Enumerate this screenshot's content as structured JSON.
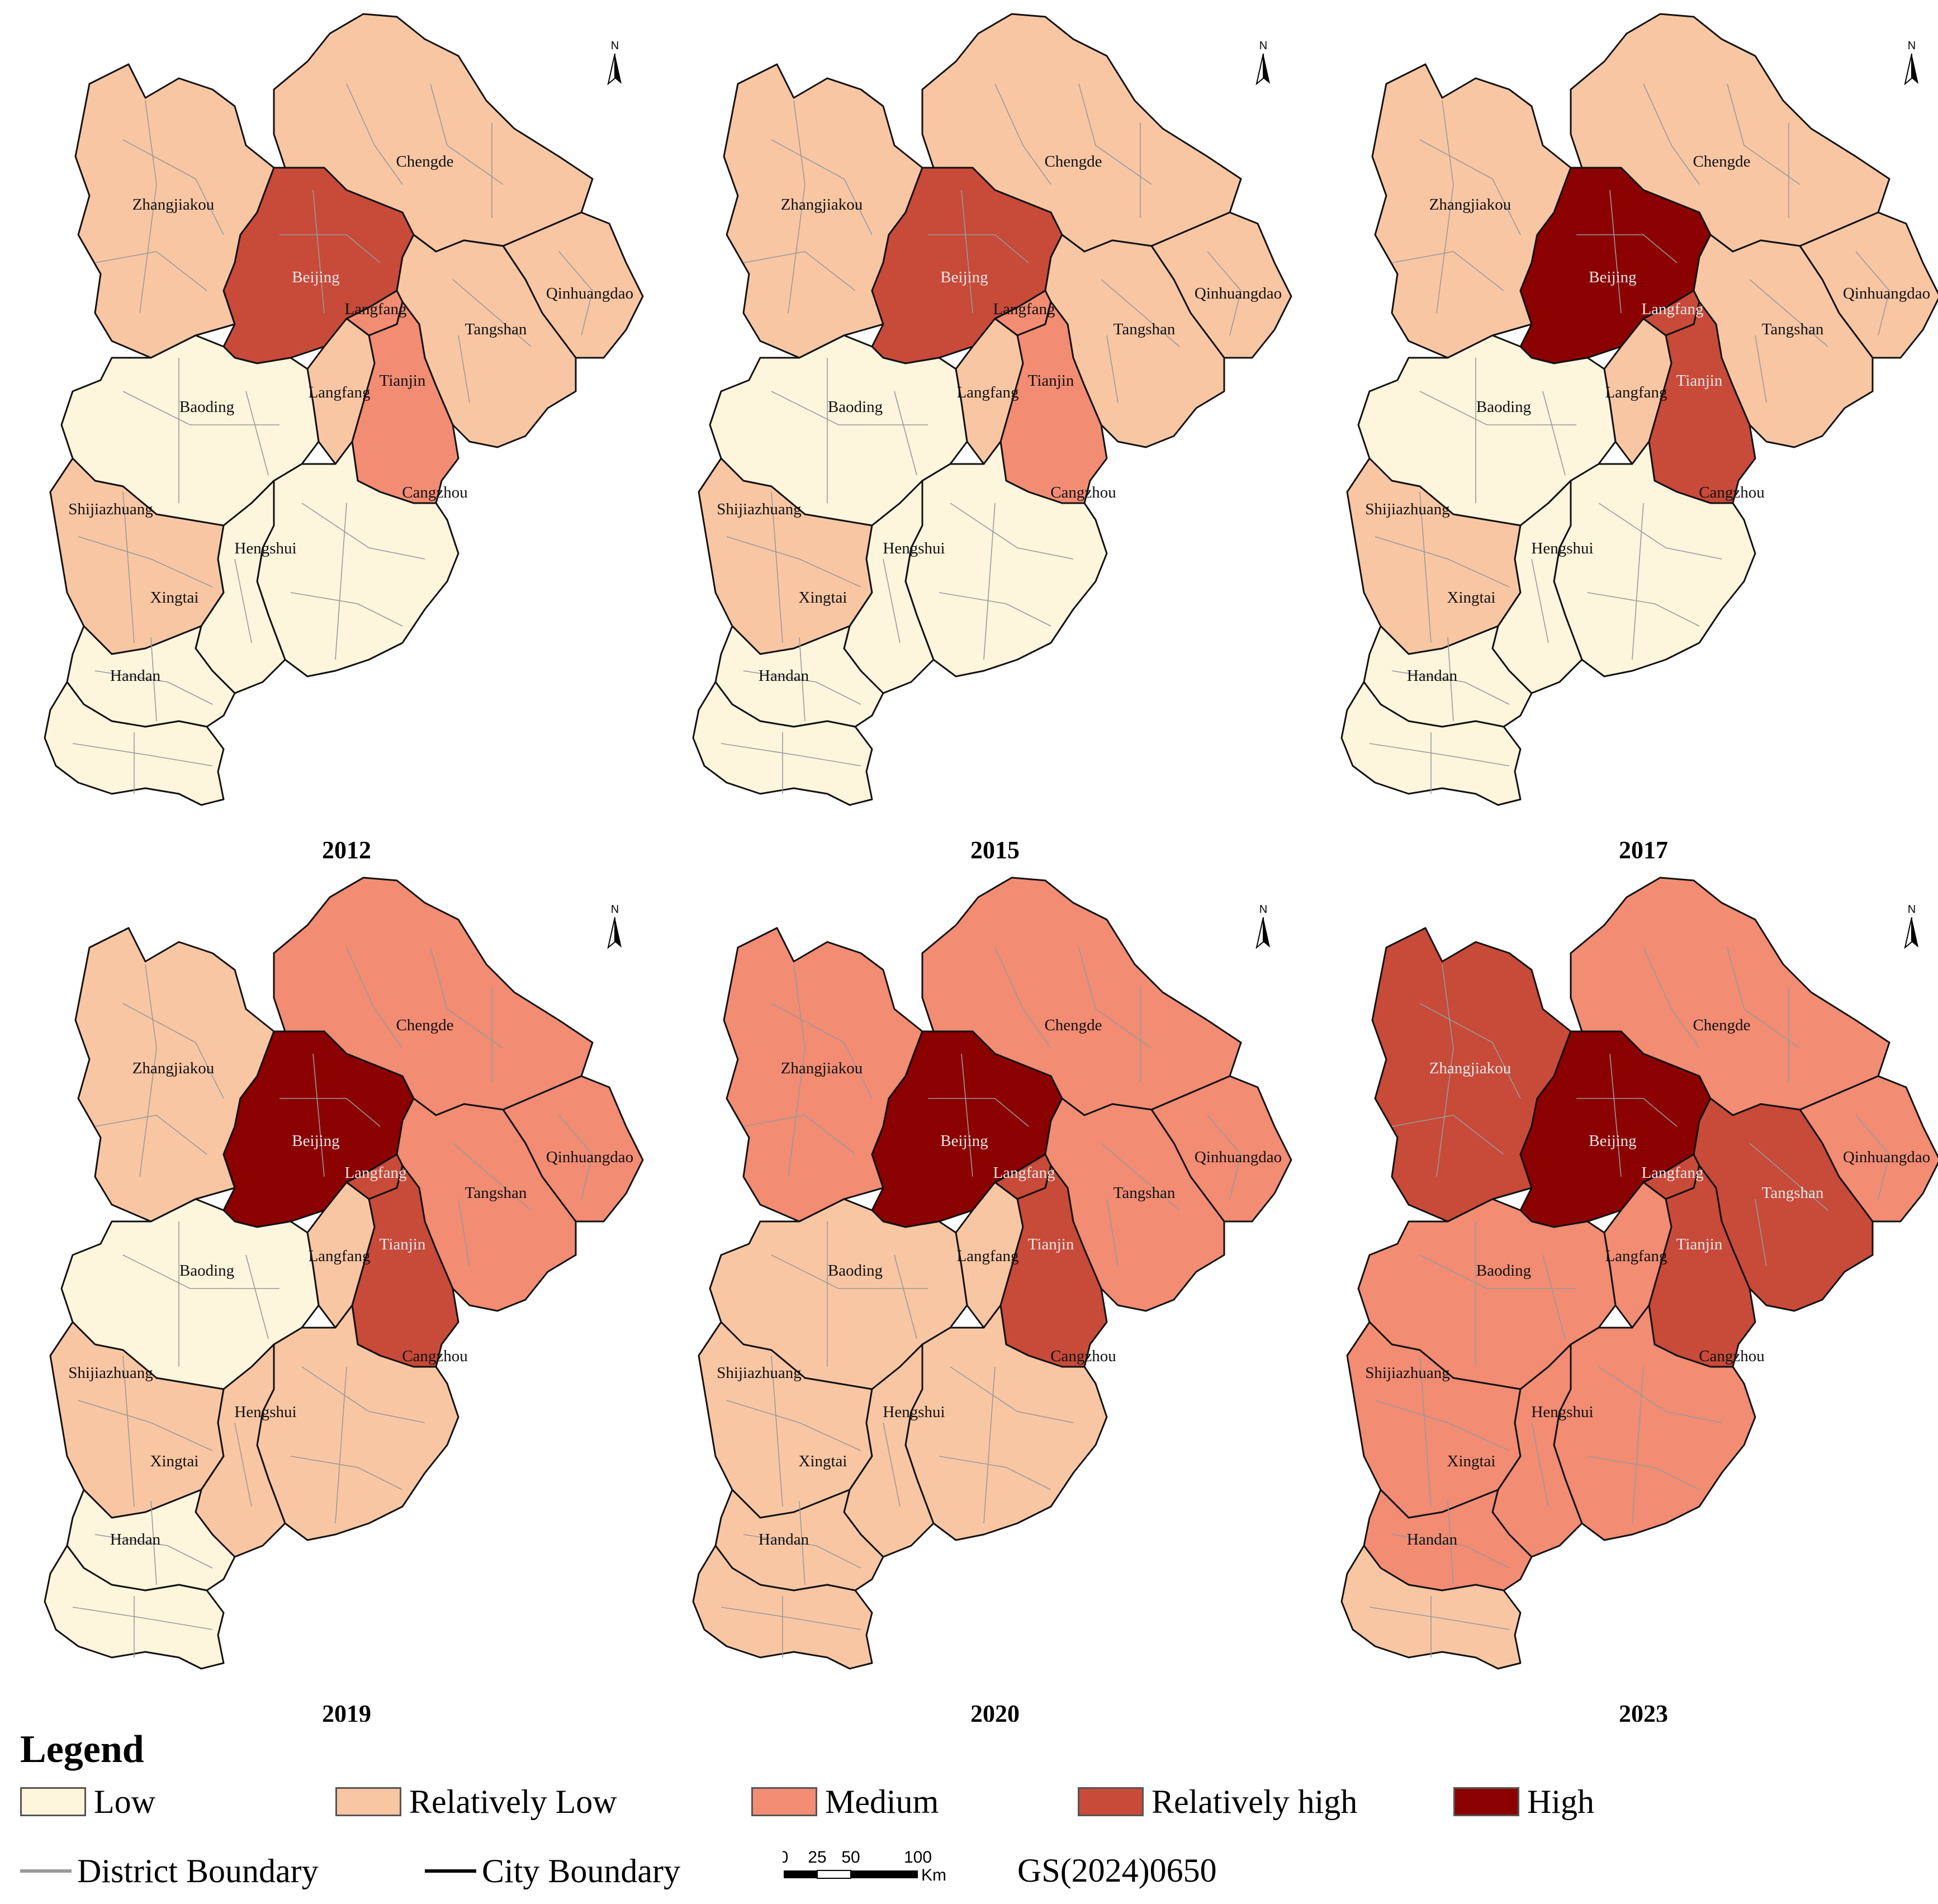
{
  "legend": {
    "title": "Legend",
    "classes": [
      {
        "label": "Low",
        "color": "#fdf5dc"
      },
      {
        "label": "Relatively Low",
        "color": "#f9c6a3"
      },
      {
        "label": "Medium",
        "color": "#f28c73"
      },
      {
        "label": "Relatively high",
        "color": "#c84a39"
      },
      {
        "label": "High",
        "color": "#8b0000"
      }
    ],
    "district_boundary_label": "District Boundary",
    "city_boundary_label": "City Boundary",
    "district_boundary_color": "#9a9a9a",
    "city_boundary_color": "#000000"
  },
  "scale_bar": {
    "ticks": [
      "0",
      "25",
      "50",
      "100"
    ],
    "unit": "Km"
  },
  "map_code": "GS(2024)0650",
  "north_label": "N",
  "city_names": {
    "zhangjiakou": "Zhangjiakou",
    "chengde": "Chengde",
    "beijing": "Beijing",
    "langfang_north": "Langfang",
    "qinhuangdao": "Qinhuangdao",
    "tangshan": "Tangshan",
    "tianjin": "Tianjin",
    "langfang_south": "Langfang",
    "baoding": "Baoding",
    "cangzhou": "Cangzhou",
    "shijiazhuang": "Shijiazhuang",
    "hengshui": "Hengshui",
    "xingtai": "Xingtai",
    "handan": "Handan"
  },
  "panels": [
    {
      "year": "2012",
      "levels": {
        "zhangjiakou": 1,
        "chengde": 1,
        "beijing": 3,
        "langfang_north": 2,
        "qinhuangdao": 1,
        "tangshan": 1,
        "tianjin": 2,
        "langfang_south": 1,
        "baoding": 0,
        "cangzhou": 0,
        "shijiazhuang": 1,
        "hengshui": 0,
        "xingtai": 0,
        "handan": 0
      }
    },
    {
      "year": "2015",
      "levels": {
        "zhangjiakou": 1,
        "chengde": 1,
        "beijing": 3,
        "langfang_north": 2,
        "qinhuangdao": 1,
        "tangshan": 1,
        "tianjin": 2,
        "langfang_south": 1,
        "baoding": 0,
        "cangzhou": 0,
        "shijiazhuang": 1,
        "hengshui": 0,
        "xingtai": 0,
        "handan": 0
      }
    },
    {
      "year": "2017",
      "levels": {
        "zhangjiakou": 1,
        "chengde": 1,
        "beijing": 4,
        "langfang_north": 3,
        "qinhuangdao": 1,
        "tangshan": 1,
        "tianjin": 3,
        "langfang_south": 1,
        "baoding": 0,
        "cangzhou": 0,
        "shijiazhuang": 1,
        "hengshui": 0,
        "xingtai": 0,
        "handan": 0
      }
    },
    {
      "year": "2019",
      "levels": {
        "zhangjiakou": 1,
        "chengde": 2,
        "beijing": 4,
        "langfang_north": 3,
        "qinhuangdao": 2,
        "tangshan": 2,
        "tianjin": 3,
        "langfang_south": 1,
        "baoding": 0,
        "cangzhou": 1,
        "shijiazhuang": 1,
        "hengshui": 1,
        "xingtai": 0,
        "handan": 0
      }
    },
    {
      "year": "2020",
      "levels": {
        "zhangjiakou": 2,
        "chengde": 2,
        "beijing": 4,
        "langfang_north": 3,
        "qinhuangdao": 2,
        "tangshan": 2,
        "tianjin": 3,
        "langfang_south": 1,
        "baoding": 1,
        "cangzhou": 1,
        "shijiazhuang": 1,
        "hengshui": 1,
        "xingtai": 1,
        "handan": 1
      }
    },
    {
      "year": "2023",
      "levels": {
        "zhangjiakou": 3,
        "chengde": 2,
        "beijing": 4,
        "langfang_north": 3,
        "qinhuangdao": 2,
        "tangshan": 3,
        "tianjin": 3,
        "langfang_south": 2,
        "baoding": 2,
        "cangzhou": 2,
        "shijiazhuang": 2,
        "hengshui": 2,
        "xingtai": 2,
        "handan": 1
      }
    }
  ]
}
